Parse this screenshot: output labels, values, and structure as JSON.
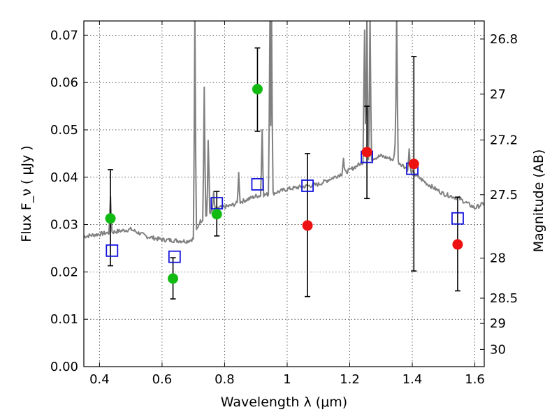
{
  "chart_data": {
    "type": "scatter",
    "xlabel": "Wavelength λ (μm)",
    "ylabel": "Flux F_ν ( μJy )",
    "ylabel_right": "Magnitude (AB)",
    "xlim": [
      0.35,
      1.63
    ],
    "ylim": [
      0.0,
      0.073
    ],
    "grid": true,
    "x_ticks": [
      "0.4",
      "0.6",
      "0.8",
      "1",
      "1.2",
      "1.4",
      "1.6"
    ],
    "x_tick_values": [
      0.4,
      0.6,
      0.8,
      1.0,
      1.2,
      1.4,
      1.6
    ],
    "y_ticks": [
      "0.00",
      "0.01",
      "0.02",
      "0.03",
      "0.04",
      "0.05",
      "0.06",
      "0.07"
    ],
    "y_tick_values": [
      0.0,
      0.01,
      0.02,
      0.03,
      0.04,
      0.05,
      0.06,
      0.07
    ],
    "mag_ticks": [
      {
        "label": "26.8",
        "mag": 26.8
      },
      {
        "label": "27",
        "mag": 27.0
      },
      {
        "label": "27.2",
        "mag": 27.2
      },
      {
        "label": "27.5",
        "mag": 27.5
      },
      {
        "label": "28",
        "mag": 28.0
      },
      {
        "label": "28.5",
        "mag": 28.5
      },
      {
        "label": "29",
        "mag": 29.0
      },
      {
        "label": "30",
        "mag": 30.0
      }
    ],
    "colors": {
      "model": "#808080",
      "optical": "#11bb11",
      "infrared": "#ee1111",
      "model_points": "#1111dd",
      "errorbar": "#000000"
    },
    "series": [
      {
        "style": "line",
        "color": "#808080",
        "baseline": [
          [
            0.35,
            0.0275
          ],
          [
            0.4,
            0.028
          ],
          [
            0.45,
            0.0285
          ],
          [
            0.5,
            0.029
          ],
          [
            0.55,
            0.0275
          ],
          [
            0.6,
            0.0268
          ],
          [
            0.68,
            0.0265
          ],
          [
            0.7,
            0.027
          ],
          [
            0.72,
            0.0305
          ],
          [
            0.75,
            0.0325
          ],
          [
            0.78,
            0.0335
          ],
          [
            0.82,
            0.034
          ],
          [
            0.86,
            0.035
          ],
          [
            0.9,
            0.036
          ],
          [
            0.95,
            0.0365
          ],
          [
            1.0,
            0.0375
          ],
          [
            1.05,
            0.038
          ],
          [
            1.1,
            0.0385
          ],
          [
            1.15,
            0.04
          ],
          [
            1.2,
            0.0415
          ],
          [
            1.25,
            0.0435
          ],
          [
            1.3,
            0.0445
          ],
          [
            1.35,
            0.0435
          ],
          [
            1.4,
            0.041
          ],
          [
            1.45,
            0.0385
          ],
          [
            1.5,
            0.0365
          ],
          [
            1.55,
            0.0355
          ],
          [
            1.6,
            0.0335
          ],
          [
            1.63,
            0.0345
          ]
        ],
        "lines": [
          [
            0.435,
            0.036
          ],
          [
            0.658,
            0.022
          ],
          [
            0.705,
            0.075
          ],
          [
            0.735,
            0.059
          ],
          [
            0.748,
            0.05
          ],
          [
            0.765,
            0.037
          ],
          [
            0.845,
            0.041
          ],
          [
            0.92,
            0.05
          ],
          [
            0.945,
            0.075
          ],
          [
            0.95,
            0.075
          ],
          [
            1.18,
            0.044
          ],
          [
            1.247,
            0.075
          ],
          [
            1.255,
            0.075
          ],
          [
            1.265,
            0.075
          ],
          [
            1.35,
            0.075
          ],
          [
            1.35,
            0.075
          ],
          [
            1.39,
            0.046
          ],
          [
            1.345,
            0.047
          ]
        ]
      },
      {
        "style": "circle",
        "color": "#11bb11",
        "points": [
          {
            "x": 0.435,
            "y": 0.0313,
            "lo": 0.0213,
            "hi": 0.0416
          },
          {
            "x": 0.635,
            "y": 0.0186,
            "lo": 0.0143,
            "hi": 0.023
          },
          {
            "x": 0.775,
            "y": 0.0322,
            "lo": 0.0276,
            "hi": 0.037
          },
          {
            "x": 0.905,
            "y": 0.0586,
            "lo": 0.0497,
            "hi": 0.0673
          }
        ]
      },
      {
        "style": "circle",
        "color": "#ee1111",
        "points": [
          {
            "x": 1.065,
            "y": 0.0298,
            "lo": 0.0148,
            "hi": 0.045
          },
          {
            "x": 1.255,
            "y": 0.0453,
            "lo": 0.0355,
            "hi": 0.055
          },
          {
            "x": 1.405,
            "y": 0.0428,
            "lo": 0.0202,
            "hi": 0.0655
          },
          {
            "x": 1.545,
            "y": 0.0258,
            "lo": 0.016,
            "hi": 0.0358
          }
        ]
      },
      {
        "style": "square",
        "color": "#1111dd",
        "points": [
          {
            "x": 0.44,
            "y": 0.0245
          },
          {
            "x": 0.64,
            "y": 0.0232
          },
          {
            "x": 0.775,
            "y": 0.0345
          },
          {
            "x": 0.905,
            "y": 0.0385
          },
          {
            "x": 1.065,
            "y": 0.0382
          },
          {
            "x": 1.255,
            "y": 0.0443
          },
          {
            "x": 1.4,
            "y": 0.0418
          },
          {
            "x": 1.545,
            "y": 0.0313
          }
        ]
      }
    ]
  }
}
